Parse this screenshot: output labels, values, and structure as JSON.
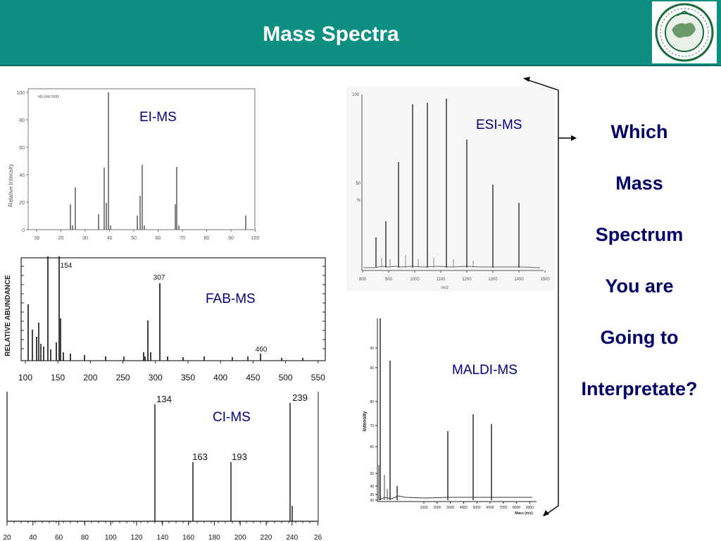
{
  "header": {
    "title": "Mass Spectra"
  },
  "labels": {
    "ei": "EI-MS",
    "esi": "ESI-MS",
    "fab": "FAB-MS",
    "maldi": "MALDI-MS",
    "ci": "CI-MS"
  },
  "question": {
    "lines": [
      "Which",
      "Mass",
      "Spectrum",
      "You are",
      "Going to",
      "Interpretate?"
    ]
  },
  "ei": {
    "ylabel": "Relative Intensity",
    "corner_text": "MS-NW-5555",
    "yticks": [
      "0",
      "20",
      "40",
      "60",
      "80",
      "100"
    ],
    "xticks": [
      "10",
      "20",
      "30",
      "40",
      "50",
      "60",
      "70",
      "80",
      "90",
      "100"
    ]
  },
  "esi": {
    "yticks": [
      "100",
      "50",
      "%"
    ],
    "xticks": [
      "800",
      "900",
      "1000",
      "1100",
      "1200",
      "1300",
      "1400",
      "1500"
    ],
    "xlabel": "m/z"
  },
  "fab": {
    "ylabel": "RELATIVE ABUNDANCE",
    "peak_labels": [
      "154",
      "307",
      "460"
    ],
    "xticks": [
      "100",
      "150",
      "200",
      "250",
      "300",
      "350",
      "400",
      "450",
      "500",
      "550"
    ]
  },
  "maldi": {
    "ylabel": "Intensity",
    "yticks": [
      "95",
      "90",
      "80",
      "70",
      "60",
      "50",
      "40",
      "35",
      "30"
    ],
    "xticks": [
      "1000",
      "2000",
      "3000",
      "4000",
      "5000",
      "6000",
      "7000",
      "8000",
      "9000"
    ],
    "xlabel": "Mass (m/z)"
  },
  "ci": {
    "peak_labels": [
      "134",
      "163",
      "193",
      "239"
    ],
    "xticks": [
      "20",
      "40",
      "60",
      "80",
      "100",
      "120",
      "140",
      "160",
      "180",
      "200",
      "220",
      "240",
      "26"
    ]
  },
  "colors": {
    "header": "#0d8f82",
    "label": "#000080",
    "question": "#000066"
  }
}
